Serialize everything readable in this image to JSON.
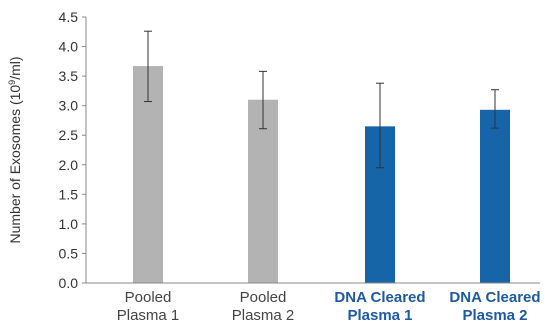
{
  "chart_data": {
    "type": "bar",
    "categories": [
      {
        "line1": "Pooled",
        "line2": "Plasma 1",
        "highlight": false
      },
      {
        "line1": "Pooled",
        "line2": "Plasma 2",
        "highlight": false
      },
      {
        "line1": "DNA Cleared",
        "line2": "Plasma 1",
        "highlight": true
      },
      {
        "line1": "DNA Cleared",
        "line2": "Plasma 2",
        "highlight": true
      }
    ],
    "values": [
      3.67,
      3.1,
      2.65,
      2.93
    ],
    "error_low": [
      3.07,
      2.61,
      1.95,
      2.62
    ],
    "error_high": [
      4.26,
      3.58,
      3.38,
      3.27
    ],
    "ylabel": "Number of Exosomes (10",
    "ylabel_sup": "9",
    "ylabel_suffix": "/ml)",
    "ylim": [
      0,
      4.5
    ],
    "yticks": [
      "0.0",
      "0.5",
      "1.0",
      "1.5",
      "2.0",
      "2.5",
      "3.0",
      "3.5",
      "4.0",
      "4.5"
    ],
    "grid": false,
    "colors": {
      "gray_bar": "#b3b3b3",
      "blue_bar": "#1565a8",
      "gray_text": "#444444",
      "blue_text": "#1d5aa0"
    }
  }
}
